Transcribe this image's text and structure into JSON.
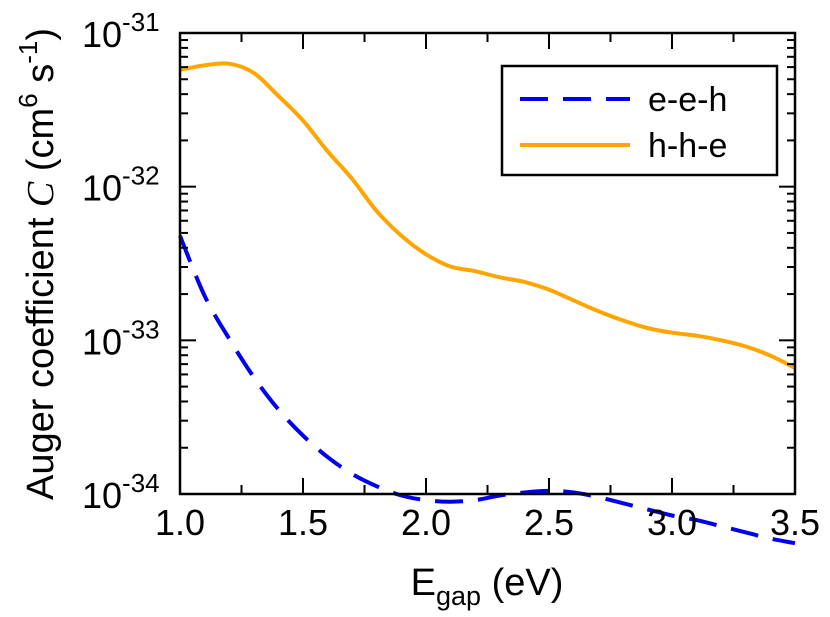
{
  "chart_data": {
    "type": "line",
    "title": "",
    "xlabel": {
      "main": "E",
      "sub": "gap",
      "rest": " (eV)"
    },
    "ylabel": {
      "text": "Auger coefficient ",
      "symbol": "C",
      "units_open": " (cm",
      "exp6": "6",
      "s": " s",
      "expm1": "-1",
      "close": ")"
    },
    "xlim": [
      1.0,
      3.5
    ],
    "ylim_log10": [
      -34,
      -31
    ],
    "y_scale": "log",
    "x_ticks": [
      "1.0",
      "1.5",
      "2.0",
      "2.5",
      "3.0",
      "3.5"
    ],
    "x_tick_values": [
      1.0,
      1.5,
      2.0,
      2.5,
      3.0,
      3.5
    ],
    "y_ticks": [
      {
        "base": "10",
        "exp": "-31",
        "log": -31
      },
      {
        "base": "10",
        "exp": "-32",
        "log": -32
      },
      {
        "base": "10",
        "exp": "-33",
        "log": -33
      },
      {
        "base": "10",
        "exp": "-34",
        "log": -34
      }
    ],
    "grid": false,
    "legend_position": "top-right",
    "series": [
      {
        "name": "e-e-h",
        "color": "#0000ee",
        "style": "dashed",
        "x": [
          1.0,
          1.1,
          1.2,
          1.3,
          1.4,
          1.5,
          1.6,
          1.7,
          1.8,
          1.9,
          2.0,
          2.1,
          2.2,
          2.3,
          2.4,
          2.5,
          2.6,
          2.7,
          2.8,
          2.9,
          3.0,
          3.1,
          3.2,
          3.3,
          3.4,
          3.5
        ],
        "logy": [
          -32.32,
          -32.71,
          -32.99,
          -33.24,
          -33.45,
          -33.62,
          -33.76,
          -33.87,
          -33.95,
          -34.01,
          -34.04,
          -34.05,
          -34.04,
          -34.01,
          -33.99,
          -33.98,
          -33.99,
          -34.02,
          -34.06,
          -34.1,
          -34.14,
          -34.17,
          -34.21,
          -34.25,
          -34.29,
          -34.32
        ]
      },
      {
        "name": "h-h-e",
        "color": "#ffa500",
        "style": "solid",
        "x": [
          1.0,
          1.1,
          1.2,
          1.3,
          1.4,
          1.5,
          1.6,
          1.7,
          1.8,
          1.9,
          2.0,
          2.1,
          2.2,
          2.3,
          2.4,
          2.5,
          2.6,
          2.7,
          2.8,
          2.9,
          3.0,
          3.1,
          3.2,
          3.3,
          3.4,
          3.5
        ],
        "logy": [
          -31.24,
          -31.21,
          -31.2,
          -31.26,
          -31.41,
          -31.57,
          -31.77,
          -31.95,
          -32.16,
          -32.32,
          -32.44,
          -32.52,
          -32.55,
          -32.59,
          -32.62,
          -32.67,
          -32.74,
          -32.81,
          -32.87,
          -32.92,
          -32.95,
          -32.97,
          -33.0,
          -33.04,
          -33.1,
          -33.18
        ]
      }
    ]
  }
}
